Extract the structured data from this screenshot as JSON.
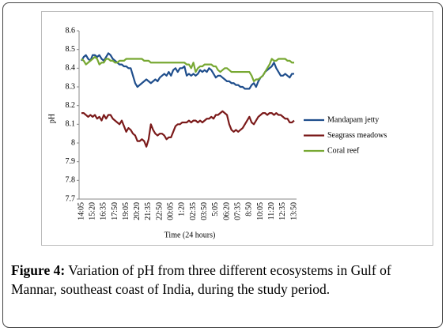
{
  "chart_data": {
    "type": "line",
    "y_label": "pH",
    "x_label": "Time  (24 hours)",
    "categories": [
      "14:05",
      null,
      null,
      null,
      null,
      "15:20",
      null,
      null,
      null,
      null,
      "16:35",
      null,
      null,
      null,
      null,
      "17:50",
      null,
      null,
      null,
      null,
      "19:05",
      null,
      null,
      null,
      null,
      "20:20",
      null,
      null,
      null,
      null,
      "21:35",
      null,
      null,
      null,
      null,
      "22:50",
      null,
      null,
      null,
      null,
      "00:05",
      null,
      null,
      null,
      null,
      "1:20",
      null,
      null,
      null,
      null,
      "02:35",
      null,
      null,
      null,
      null,
      "03:50",
      null,
      null,
      null,
      null,
      "5:05",
      null,
      null,
      null,
      null,
      "06:20",
      null,
      null,
      null,
      null,
      "07:35",
      null,
      null,
      null,
      null,
      "8:50",
      null,
      null,
      null,
      null,
      "10:05",
      null,
      null,
      null,
      null,
      "11:20",
      null,
      null,
      null,
      null,
      "12:35",
      null,
      null,
      null,
      null,
      "13:50"
    ],
    "series": [
      {
        "name": "Mandapam jetty",
        "color": "#1f4e8c",
        "values": [
          8.44,
          8.46,
          8.47,
          8.45,
          8.44,
          8.47,
          8.47,
          8.46,
          8.47,
          8.45,
          8.44,
          8.46,
          8.48,
          8.47,
          8.45,
          8.44,
          8.43,
          8.42,
          8.42,
          8.41,
          8.41,
          8.4,
          8.4,
          8.36,
          8.32,
          8.3,
          8.31,
          8.32,
          8.33,
          8.34,
          8.33,
          8.32,
          8.33,
          8.34,
          8.33,
          8.35,
          8.36,
          8.37,
          8.36,
          8.38,
          8.36,
          8.39,
          8.4,
          8.38,
          8.4,
          8.4,
          8.41,
          8.36,
          8.37,
          8.36,
          8.37,
          8.36,
          8.37,
          8.39,
          8.38,
          8.39,
          8.38,
          8.4,
          8.39,
          8.37,
          8.35,
          8.36,
          8.36,
          8.35,
          8.34,
          8.33,
          8.33,
          8.32,
          8.32,
          8.31,
          8.31,
          8.3,
          8.3,
          8.29,
          8.29,
          8.29,
          8.31,
          8.32,
          8.3,
          8.33,
          8.35,
          8.36,
          8.38,
          8.39,
          8.4,
          8.41,
          8.43,
          8.4,
          8.38,
          8.36,
          8.36,
          8.37,
          8.36,
          8.35,
          8.37,
          8.37
        ]
      },
      {
        "name": "Seagrass meadows",
        "color": "#7b1a1a",
        "values": [
          8.16,
          8.16,
          8.15,
          8.14,
          8.15,
          8.14,
          8.15,
          8.13,
          8.14,
          8.12,
          8.15,
          8.13,
          8.15,
          8.15,
          8.13,
          8.12,
          8.11,
          8.1,
          8.12,
          8.09,
          8.06,
          8.08,
          8.07,
          8.05,
          8.04,
          8.01,
          8.01,
          8.02,
          8.01,
          7.98,
          8.02,
          8.1,
          8.07,
          8.05,
          8.04,
          8.05,
          8.05,
          8.04,
          8.02,
          8.03,
          8.03,
          8.06,
          8.09,
          8.1,
          8.1,
          8.11,
          8.11,
          8.11,
          8.12,
          8.11,
          8.12,
          8.12,
          8.11,
          8.12,
          8.11,
          8.12,
          8.13,
          8.13,
          8.14,
          8.13,
          8.15,
          8.15,
          8.16,
          8.17,
          8.16,
          8.15,
          8.1,
          8.07,
          8.06,
          8.07,
          8.06,
          8.07,
          8.08,
          8.1,
          8.12,
          8.14,
          8.11,
          8.1,
          8.12,
          8.14,
          8.15,
          8.16,
          8.16,
          8.15,
          8.16,
          8.16,
          8.15,
          8.16,
          8.15,
          8.15,
          8.14,
          8.13,
          8.13,
          8.11,
          8.11,
          8.12
        ]
      },
      {
        "name": "Coral reef",
        "color": "#77a832",
        "values": [
          8.45,
          8.44,
          8.42,
          8.43,
          8.44,
          8.45,
          8.46,
          8.45,
          8.42,
          8.43,
          8.43,
          8.45,
          8.45,
          8.44,
          8.44,
          8.43,
          8.43,
          8.44,
          8.44,
          8.44,
          8.45,
          8.45,
          8.45,
          8.45,
          8.45,
          8.45,
          8.45,
          8.45,
          8.44,
          8.44,
          8.44,
          8.43,
          8.43,
          8.43,
          8.43,
          8.43,
          8.43,
          8.43,
          8.43,
          8.43,
          8.43,
          8.43,
          8.43,
          8.43,
          8.43,
          8.43,
          8.43,
          8.42,
          8.42,
          8.4,
          8.43,
          8.38,
          8.4,
          8.41,
          8.41,
          8.42,
          8.42,
          8.42,
          8.42,
          8.41,
          8.41,
          8.39,
          8.38,
          8.39,
          8.4,
          8.4,
          8.39,
          8.38,
          8.38,
          8.38,
          8.38,
          8.38,
          8.38,
          8.38,
          8.38,
          8.38,
          8.36,
          8.33,
          8.34,
          8.34,
          8.35,
          8.36,
          8.38,
          8.4,
          8.42,
          8.45,
          8.44,
          8.44,
          8.45,
          8.45,
          8.45,
          8.45,
          8.44,
          8.44,
          8.43,
          8.43
        ]
      }
    ],
    "ylim": [
      7.7,
      8.6
    ],
    "yticks": [
      7.7,
      7.8,
      7.9,
      8,
      8.1,
      8.2,
      8.3,
      8.4,
      8.5,
      8.6
    ],
    "grid": false,
    "legend": "right"
  },
  "caption": {
    "label": "Figure 4:",
    "text": "Variation of pH from three different ecosystems in Gulf of Mannar, southeast coast of India, during the study period."
  }
}
